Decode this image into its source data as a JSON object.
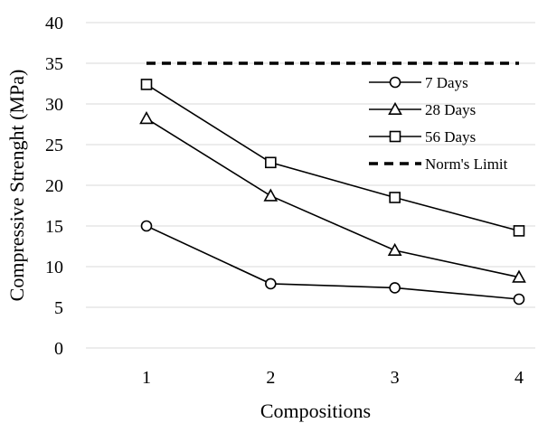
{
  "chart_data": {
    "type": "line",
    "title": "",
    "xlabel": "Compositions",
    "ylabel": "Compressive Strenght (MPa)",
    "x": [
      1,
      2,
      3,
      4
    ],
    "ylim": [
      0,
      40
    ],
    "yticks": [
      0,
      5,
      10,
      15,
      20,
      25,
      30,
      35,
      40
    ],
    "grid": true,
    "legend": "top-right",
    "series": [
      {
        "name": "7 Days",
        "marker": "circle",
        "values": [
          15.0,
          7.9,
          7.4,
          6.0
        ]
      },
      {
        "name": "28 Days",
        "marker": "triangle",
        "values": [
          28.2,
          18.7,
          12.0,
          8.7
        ]
      },
      {
        "name": "56 Days",
        "marker": "square",
        "values": [
          32.4,
          22.8,
          18.5,
          14.4
        ]
      }
    ],
    "reference_line": {
      "name": "Norm's Limit",
      "value": 35,
      "style": "dashed"
    }
  }
}
